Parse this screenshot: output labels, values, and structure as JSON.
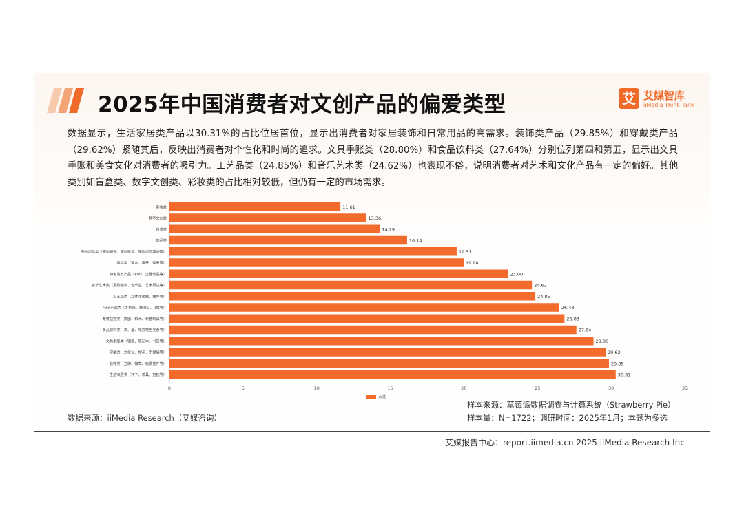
{
  "header": {
    "title": "2025年中国消费者对文创产品的偏爱类型",
    "logo_cn": "艾媒智库",
    "logo_en": "iiMedia Think Tank",
    "logo_mark": "艾"
  },
  "description": "数据显示，生活家居类产品以30.31%的占比位居首位，显示出消费者对家居装饰和日常用品的高需求。装饰类产品（29.85%）和穿戴类产品（29.62%）紧随其后，反映出消费者对个性化和时尚的追求。文具手账类（28.80%）和食品饮料类（27.64%）分别位列第四和第五，显示出文具手账和美食文化对消费者的吸引力。工艺品类（24.85%）和音乐艺术类（24.62%）也表现不俗，说明消费者对艺术和文化产品有一定的偏好。其他类别如盲盒类、数字文创类、彩妆类的占比相对较低，但仍有一定的市场需求。",
  "chart_data": {
    "type": "bar",
    "orientation": "horizontal",
    "categories": [
      "彩妆类",
      "数字文创类",
      "盲盒类",
      "饰品类",
      "宠物用品类（宠物服饰、宠物玩具、宠物用品装饰等）",
      "香氛类（香水、香薰、香薰等）",
      "特色地方产品（石刻、玉雕饰品等）",
      "音乐艺术类（黑胶唱片、音乐盒、艺术周边等）",
      "工艺品类（立体冰箱贴、摆件等）",
      "电子产品类（手机壳、充电宝、U盘等）",
      "教育益智类（拼图、积木、科普玩具等）",
      "食品饮料类（茶、酒、地方特色美食等）",
      "文具手账类（钢笔、笔记本、书签等）",
      "穿戴类（文化衫、帽子、手提袋等）",
      "装饰类（立牌、徽章、玩偶挂件等）",
      "生活家居类（杯子、茶具、抱枕等）"
    ],
    "series": [
      {
        "name": "占比",
        "values": [
          11.61,
          13.36,
          14.29,
          16.14,
          19.51,
          19.98,
          23.0,
          24.62,
          24.85,
          26.48,
          26.83,
          27.64,
          28.8,
          29.62,
          29.85,
          30.31
        ],
        "labels": [
          "11.61",
          "13.36",
          "14.29",
          "16.14",
          "19.51",
          "19.98",
          "23.00",
          "24.62",
          "24.85",
          "26.48",
          "26.83",
          "27.64",
          "28.80",
          "29.62",
          "29.85",
          "30.31"
        ]
      }
    ],
    "xlim": [
      0,
      35
    ],
    "xticks": [
      "0",
      "5",
      "10",
      "15",
      "20",
      "25",
      "30",
      "35"
    ],
    "x_unit": "%",
    "grid": false,
    "legend": "bottom",
    "bar_color": "#f26b2d"
  },
  "source": {
    "left": "数据来源：iiMedia Research（艾媒咨询）",
    "right_1": "样本来源：草莓派数据调查与计算系统（Strawberry Pie）",
    "right_2": "样本量：N=1722；调研时间：2025年1月；本题为多选"
  },
  "footer": {
    "text": "艾媒报告中心：report.iimedia.cn 2025 iiMedia Research Inc"
  }
}
